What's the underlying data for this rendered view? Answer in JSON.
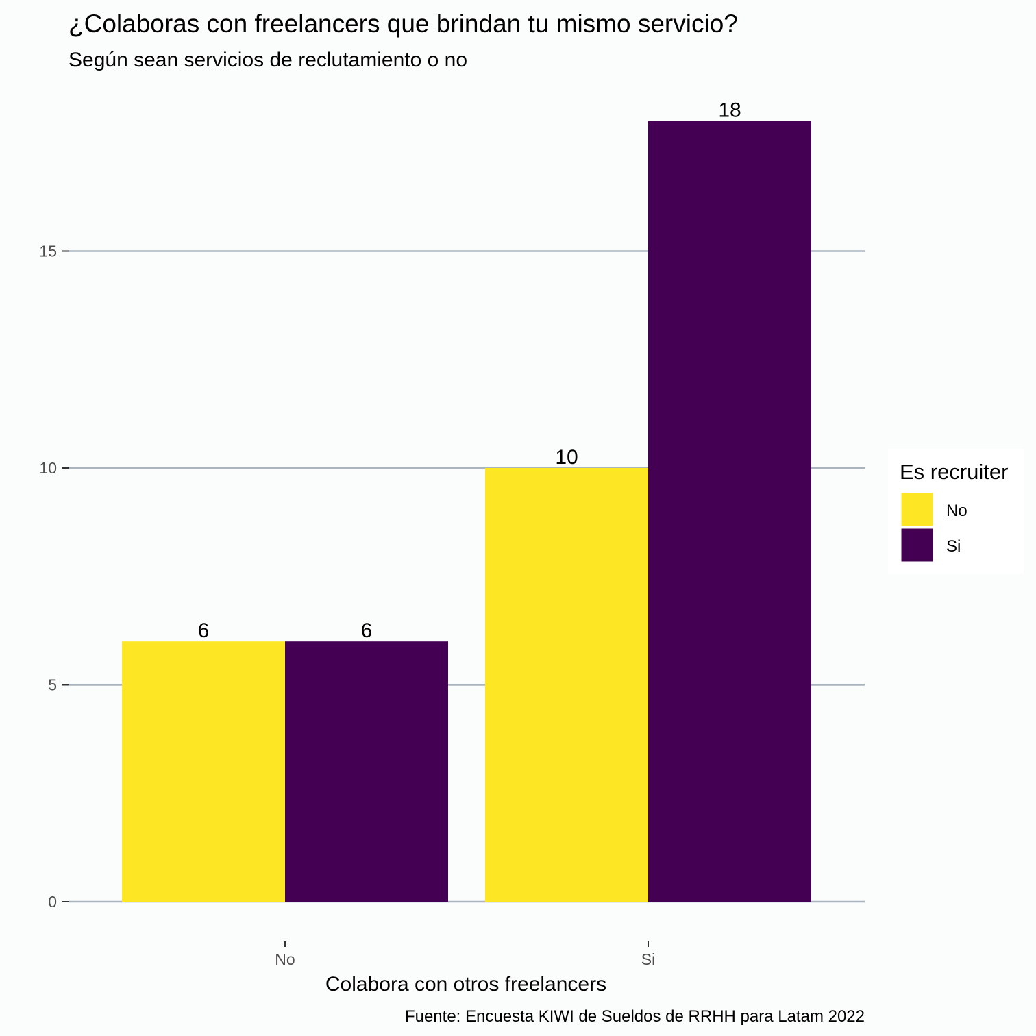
{
  "chart_data": {
    "type": "bar",
    "title": "¿Colaboras con freelancers que brindan tu mismo servicio?",
    "subtitle": "Según sean servicios de reclutamiento o no",
    "xlabel": "Colabora con otros freelancers",
    "ylabel": "",
    "caption": "Fuente: Encuesta KIWI de Sueldos de RRHH para Latam 2022",
    "categories": [
      "No",
      "Si"
    ],
    "series": [
      {
        "name": "No",
        "values": [
          6,
          10
        ],
        "color": "#FDE725"
      },
      {
        "name": "Si",
        "values": [
          6,
          18
        ],
        "color": "#440154"
      }
    ],
    "ylim": [
      0,
      18
    ],
    "yticks": [
      0,
      5,
      10,
      15
    ],
    "grid": "horizontal major",
    "legend": {
      "title": "Es recruiter",
      "placement": "right"
    },
    "background": "#fbfcfc",
    "grid_color": "#a9b4bf"
  }
}
